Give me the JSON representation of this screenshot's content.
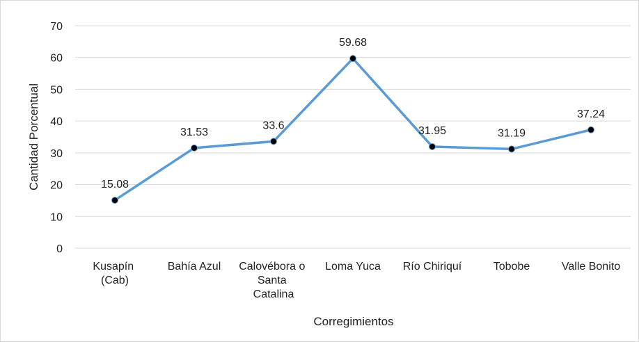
{
  "chart_data": {
    "type": "line",
    "x_label": "Corregimientos",
    "y_label": "Cantidad Porcentual",
    "categories": [
      "Kusapín (Cab)",
      "Bahía Azul",
      "Calovébora o Santa Catalina",
      "Loma Yuca",
      "Río Chiriquí",
      "Tobobe",
      "Valle Bonito"
    ],
    "values": [
      15.08,
      31.53,
      33.6,
      59.68,
      31.95,
      31.19,
      37.24
    ],
    "color": "#5b9bd5",
    "marker_color": "#000000",
    "ylim": [
      0,
      70
    ],
    "yticks": [
      0,
      10,
      20,
      30,
      40,
      50,
      60,
      70
    ],
    "grid": true
  }
}
